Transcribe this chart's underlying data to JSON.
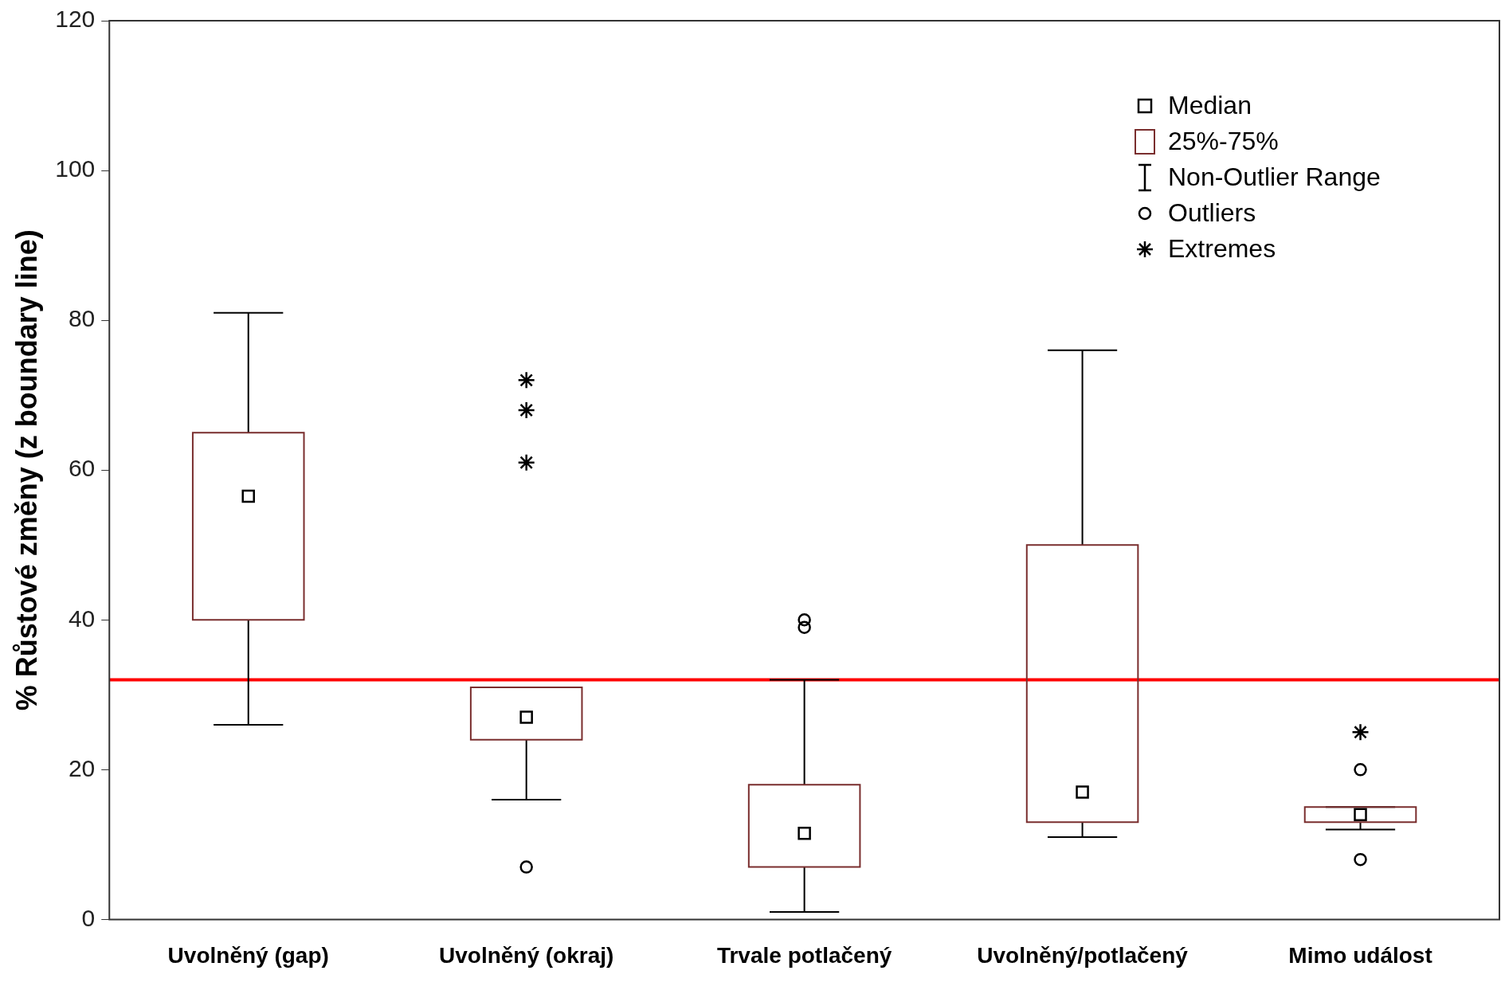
{
  "chart_data": {
    "type": "box",
    "ylabel": "% Růstové změny (z boundary line)",
    "categories": [
      "Uvolněný (gap)",
      "Uvolněný (okraj)",
      "Trvale potlačený",
      "Uvolněný/potlačený",
      "Mimo událost"
    ],
    "ylim": [
      0,
      120
    ],
    "yticks": [
      0,
      20,
      40,
      60,
      80,
      100,
      120
    ],
    "grid": false,
    "legend": "top right",
    "series": [
      {
        "name": "25%-75%",
        "color": "#7a2e2e",
        "boxes": [
          {
            "low": 26,
            "q1": 40,
            "median": 56.5,
            "q3": 65,
            "high": 81
          },
          {
            "low": 16,
            "q1": 24,
            "median": 27,
            "q3": 31,
            "high": 31,
            "outliers": [
              7
            ]
          },
          {
            "low": 1,
            "q1": 7,
            "median": 11.5,
            "q3": 18,
            "high": 32,
            "outliers": [
              39,
              40
            ]
          },
          {
            "low": 11,
            "q1": 13,
            "median": 17,
            "q3": 50,
            "high": 76
          },
          {
            "low": 12,
            "q1": 13,
            "median": 14,
            "q3": 15,
            "high": 15,
            "outliers": [
              8,
              20
            ]
          }
        ]
      },
      {
        "name": "Extremes",
        "type": "scatter",
        "marker": "cross",
        "color": "#000000",
        "x": [
          "Uvolněný (okraj)",
          "Uvolněný (okraj)",
          "Uvolněný (okraj)",
          "Mimo událost"
        ],
        "values": [
          61,
          68,
          72,
          25
        ]
      }
    ],
    "ref_lines": [
      {
        "axis": "y",
        "value": 32,
        "color": "#ff0000"
      }
    ],
    "annotations": [
      "Median",
      "Non-Outlier Range",
      "Outliers"
    ]
  }
}
